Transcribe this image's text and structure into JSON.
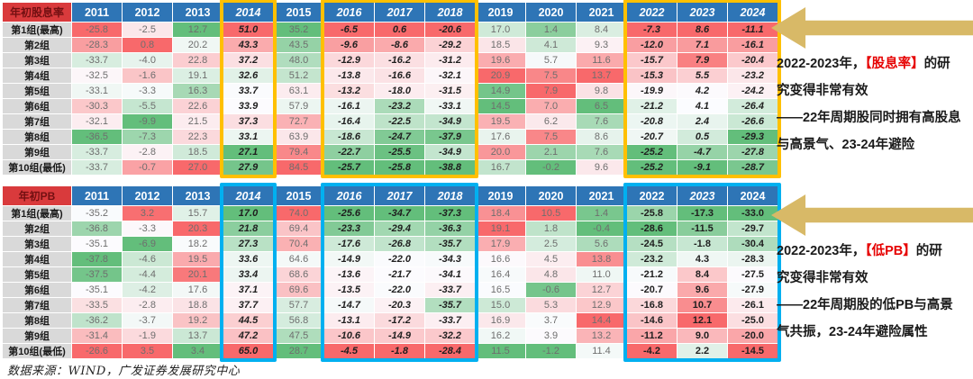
{
  "colors": {
    "heat_max_red": "#F8696B",
    "heat_mid_white": "#FCFCFF",
    "heat_min_green": "#63BE7B",
    "header_bg": "#2E75B6",
    "header_text": "#FFFFFF",
    "title_cell_bg": "#D93A3C",
    "title_cell_text": "#731012",
    "row_label_bg": "#D9D9D9",
    "row_label_text": "#1A1A1A",
    "cell_text": "#6E6E6E",
    "cell_text_boxed": "#1F1F1F",
    "box_orange": "#FFC000",
    "box_blue": "#00B0F0",
    "arrow_fill": "#D8B967",
    "annotation_text": "#1A1A1A",
    "annotation_red": "#E60000"
  },
  "footer": {
    "text": "数据来源：WIND，广发证券发展研究中心"
  },
  "annotations": [
    {
      "lines": [
        [
          {
            "text": "2022-2023年，"
          },
          {
            "text": "【股息率】",
            "highlight": true
          },
          {
            "text": "的研"
          }
        ],
        [
          {
            "text": "究变得非常有效"
          }
        ],
        [
          {
            "text": "——22年周期股同时拥有高股息"
          }
        ],
        [
          {
            "text": "与高景气、23-24年避险"
          }
        ]
      ]
    },
    {
      "lines": [
        [
          {
            "text": "2022-2023年，"
          },
          {
            "text": "【低PB】",
            "highlight": true
          },
          {
            "text": "的研"
          }
        ],
        [
          {
            "text": "究变得非常有效"
          }
        ],
        [
          {
            "text": "——22年周期股的低PB与高景"
          }
        ],
        [
          {
            "text": "气共振，23-24年避险属性"
          }
        ]
      ]
    }
  ],
  "chart_data": [
    {
      "type": "heatmap",
      "title": "年初股息率",
      "columns": [
        "2011",
        "2012",
        "2013",
        "2014",
        "2015",
        "2016",
        "2017",
        "2018",
        "2019",
        "2020",
        "2021",
        "2022",
        "2023",
        "2024"
      ],
      "rows": [
        "第1组(最高)",
        "第2组",
        "第3组",
        "第4组",
        "第5组",
        "第6组",
        "第7组",
        "第8组",
        "第9组",
        "第10组(最低)"
      ],
      "values": [
        [
          -25.8,
          -2.5,
          12.7,
          51.0,
          35.2,
          -6.5,
          0.6,
          -20.6,
          17.0,
          1.4,
          8.4,
          -7.3,
          8.6,
          -11.1
        ],
        [
          -28.3,
          0.8,
          20.2,
          43.3,
          43.5,
          -9.6,
          -8.6,
          -29.2,
          18.5,
          4.1,
          9.3,
          -12.0,
          7.1,
          -16.1
        ],
        [
          -33.7,
          -4.0,
          22.8,
          37.2,
          48.0,
          -12.9,
          -16.2,
          -31.2,
          19.6,
          5.7,
          11.6,
          -15.7,
          7.9,
          -20.4
        ],
        [
          -32.5,
          -1.6,
          19.1,
          32.6,
          51.2,
          -13.8,
          -16.6,
          -32.1,
          20.9,
          7.5,
          13.7,
          -15.3,
          5.5,
          -23.2
        ],
        [
          -33.1,
          -3.3,
          16.3,
          33.7,
          63.1,
          -13.2,
          -18.0,
          -31.5,
          14.9,
          7.9,
          9.8,
          -19.9,
          4.2,
          -24.2
        ],
        [
          -30.3,
          -5.5,
          22.6,
          33.9,
          57.9,
          -16.1,
          -23.2,
          -33.1,
          14.5,
          7.0,
          6.5,
          -21.2,
          4.1,
          -26.4
        ],
        [
          -32.1,
          -9.9,
          21.5,
          37.3,
          72.7,
          -16.4,
          -22.5,
          -34.9,
          19.5,
          6.2,
          7.6,
          -20.8,
          2.4,
          -26.6
        ],
        [
          -36.5,
          -7.3,
          22.3,
          33.1,
          63.9,
          -18.6,
          -24.7,
          -37.9,
          17.6,
          7.5,
          8.6,
          -20.7,
          0.5,
          -29.3
        ],
        [
          -33.7,
          -2.8,
          18.5,
          27.1,
          79.4,
          -22.7,
          -25.5,
          -34.9,
          20.0,
          2.1,
          7.6,
          -25.2,
          -4.7,
          -27.8
        ],
        [
          -33.7,
          -0.7,
          27.0,
          27.9,
          84.5,
          -25.7,
          -25.8,
          -38.8,
          16.7,
          -0.2,
          9.6,
          -25.2,
          -9.1,
          -28.7
        ]
      ],
      "color_scale": {
        "max": "red",
        "mid": "white_at_column_median",
        "min": "green"
      },
      "italic_header_columns": [
        "2014",
        "2016",
        "2017",
        "2018",
        "2022",
        "2023",
        "2024"
      ],
      "italic_value_columns": [
        "2014",
        "2016",
        "2017",
        "2018",
        "2022",
        "2023",
        "2024"
      ],
      "highlight_boxes": [
        {
          "from": "2014",
          "to": "2014"
        },
        {
          "from": "2016",
          "to": "2018"
        },
        {
          "from": "2022",
          "to": "2024"
        }
      ],
      "box_color_key": "box_orange",
      "legend_position": "none",
      "grid": false
    },
    {
      "type": "heatmap",
      "title": "年初PB",
      "columns": [
        "2011",
        "2012",
        "2013",
        "2014",
        "2015",
        "2016",
        "2017",
        "2018",
        "2019",
        "2020",
        "2021",
        "2022",
        "2023",
        "2024"
      ],
      "rows": [
        "第1组(最高)",
        "第2组",
        "第3组",
        "第4组",
        "第5组",
        "第6组",
        "第7组",
        "第8组",
        "第9组",
        "第10组(最低)"
      ],
      "values": [
        [
          -35.2,
          3.2,
          15.7,
          17.0,
          74.0,
          -25.6,
          -34.7,
          -37.3,
          18.4,
          10.5,
          1.4,
          -25.8,
          -17.3,
          -33.0
        ],
        [
          -36.8,
          -3.3,
          20.3,
          21.8,
          69.4,
          -23.3,
          -29.4,
          -36.3,
          19.1,
          1.8,
          -0.4,
          -28.6,
          -11.5,
          -29.7
        ],
        [
          -35.1,
          -6.9,
          18.2,
          27.3,
          70.4,
          -17.6,
          -26.8,
          -35.7,
          17.9,
          2.5,
          5.6,
          -24.5,
          -1.8,
          -30.4
        ],
        [
          -37.8,
          -4.6,
          19.5,
          33.6,
          64.6,
          -14.9,
          -22.0,
          -34.3,
          16.6,
          4.5,
          13.8,
          -23.2,
          4.3,
          -28.3
        ],
        [
          -37.5,
          -4.4,
          20.1,
          33.4,
          68.6,
          -13.6,
          -21.7,
          -34.1,
          16.4,
          4.8,
          11.0,
          -21.2,
          8.4,
          -27.5
        ],
        [
          -35.1,
          -4.2,
          17.6,
          37.1,
          69.6,
          -13.5,
          -22.0,
          -33.7,
          16.5,
          -0.6,
          12.7,
          -20.7,
          9.6,
          -27.9
        ],
        [
          -33.5,
          -2.8,
          18.8,
          37.7,
          57.7,
          -14.7,
          -20.3,
          -35.7,
          15.0,
          5.3,
          12.9,
          -16.8,
          10.7,
          -26.1
        ],
        [
          -36.2,
          -3.7,
          19.2,
          44.5,
          56.8,
          -13.1,
          -17.2,
          -33.7,
          16.9,
          3.7,
          14.4,
          -14.6,
          12.1,
          -25.0
        ],
        [
          -31.4,
          -1.9,
          13.7,
          47.2,
          47.5,
          -10.6,
          -14.9,
          -32.2,
          16.2,
          3.9,
          13.2,
          -11.2,
          9.0,
          -20.0
        ],
        [
          -26.6,
          3.5,
          3.4,
          65.0,
          28.7,
          -4.5,
          -1.8,
          -28.4,
          11.5,
          -1.2,
          11.4,
          -4.2,
          2.2,
          -14.5
        ]
      ],
      "color_scale": {
        "max": "red",
        "mid": "white_at_column_median",
        "min": "green"
      },
      "italic_header_columns": [
        "2014",
        "2016",
        "2017",
        "2018",
        "2023"
      ],
      "italic_value_columns": [
        "2014",
        "2016",
        "2017",
        "2018"
      ],
      "highlight_boxes": [
        {
          "from": "2014",
          "to": "2014"
        },
        {
          "from": "2016",
          "to": "2018"
        },
        {
          "from": "2022",
          "to": "2024"
        }
      ],
      "box_color_key": "box_blue",
      "legend_position": "none",
      "grid": false
    }
  ]
}
